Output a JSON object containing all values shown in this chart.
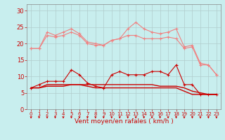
{
  "x": [
    0,
    1,
    2,
    3,
    4,
    5,
    6,
    7,
    8,
    9,
    10,
    11,
    12,
    13,
    14,
    15,
    16,
    17,
    18,
    19,
    20,
    21,
    22,
    23
  ],
  "line1": [
    18.5,
    18.5,
    23.5,
    22.5,
    23.5,
    24.5,
    23.0,
    20.5,
    20.0,
    19.5,
    21.0,
    21.5,
    24.5,
    26.5,
    24.5,
    23.5,
    23.0,
    23.5,
    24.5,
    19.0,
    19.5,
    14.0,
    13.5,
    10.5
  ],
  "line2": [
    18.5,
    18.5,
    22.5,
    22.0,
    22.5,
    23.5,
    22.5,
    20.0,
    19.5,
    19.5,
    21.0,
    21.5,
    22.5,
    22.5,
    21.5,
    21.5,
    21.5,
    22.0,
    21.5,
    18.5,
    19.0,
    13.5,
    13.5,
    10.5
  ],
  "line3": [
    6.5,
    7.5,
    8.5,
    8.5,
    8.5,
    12.0,
    10.5,
    8.0,
    7.0,
    6.5,
    10.5,
    11.5,
    10.5,
    10.5,
    10.5,
    11.5,
    11.5,
    10.5,
    13.5,
    7.5,
    7.5,
    4.5,
    4.5,
    4.5
  ],
  "line4": [
    6.5,
    6.5,
    7.5,
    7.5,
    7.5,
    7.5,
    7.5,
    7.0,
    6.5,
    6.5,
    6.5,
    6.5,
    6.5,
    6.5,
    6.5,
    6.5,
    6.5,
    6.5,
    6.5,
    5.5,
    4.5,
    4.5,
    4.5,
    4.5
  ],
  "line5": [
    6.5,
    6.5,
    7.0,
    7.0,
    7.0,
    7.5,
    7.5,
    7.5,
    7.5,
    7.5,
    7.5,
    7.5,
    7.5,
    7.5,
    7.5,
    7.5,
    7.0,
    7.0,
    7.0,
    6.5,
    5.5,
    5.0,
    4.5,
    4.5
  ],
  "color_light": "#f08080",
  "color_dark": "#cc0000",
  "bg_color": "#c8eeee",
  "grid_color": "#b0cccc",
  "xlabel": "Vent moyen/en rafales ( km/h )",
  "ylim": [
    0,
    32
  ],
  "xlim": [
    -0.5,
    23.5
  ],
  "yticks": [
    0,
    5,
    10,
    15,
    20,
    25,
    30
  ],
  "xticks": [
    0,
    1,
    2,
    3,
    4,
    5,
    6,
    7,
    8,
    9,
    10,
    11,
    12,
    13,
    14,
    15,
    16,
    17,
    18,
    19,
    20,
    21,
    22,
    23
  ]
}
